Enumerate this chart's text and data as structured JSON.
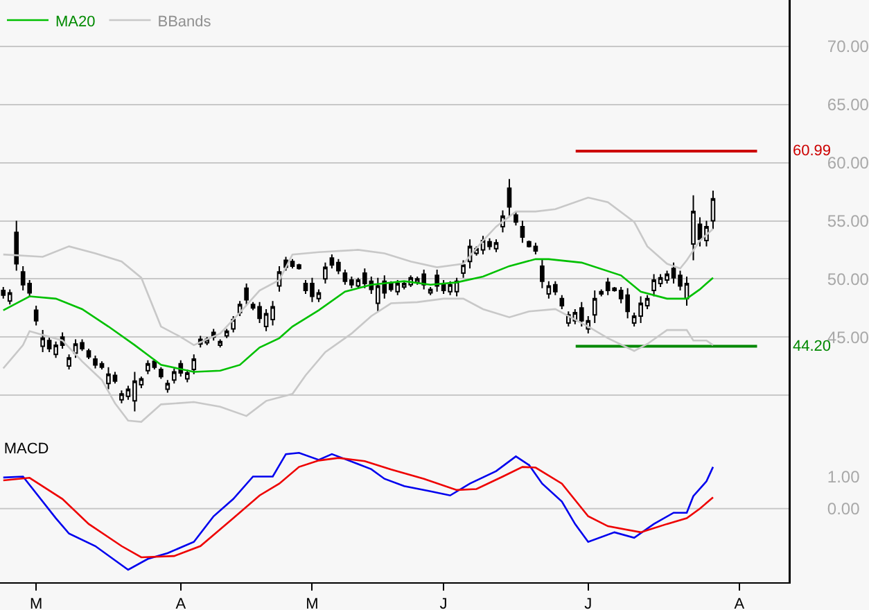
{
  "chart_data": [
    {
      "type": "candlestick",
      "color": "#000000",
      "legend": "top left",
      "grid": "y",
      "tick_labels": "y",
      "categories": [
        null,
        null,
        null,
        null,
        null,
        null,
        null,
        null,
        null,
        null,
        null,
        null,
        null,
        null,
        null,
        null,
        null,
        null,
        null,
        null,
        null,
        null,
        null,
        null,
        null,
        null,
        null,
        null,
        null,
        null,
        null,
        null,
        null,
        null,
        null,
        null,
        null,
        null,
        null,
        null,
        null,
        null,
        null,
        null,
        null,
        null,
        null,
        null,
        null,
        null,
        null,
        null,
        null,
        null,
        null,
        null,
        null,
        null,
        null,
        null,
        null,
        null,
        null,
        null,
        null,
        null,
        null,
        null,
        null,
        null,
        null,
        null,
        null,
        null,
        null,
        null,
        null,
        null,
        null,
        null,
        null,
        null,
        null,
        null,
        null,
        null,
        null,
        null,
        null,
        null,
        null,
        null,
        null,
        null,
        null,
        null,
        null,
        null,
        null,
        null,
        null,
        null,
        null,
        null,
        null,
        null,
        null,
        null,
        null,
        null,
        null,
        null,
        null,
        null,
        null,
        null,
        null,
        null,
        null,
        null
      ],
      "ohlc": [
        [
          49.0,
          49.3,
          48.3,
          48.6
        ],
        [
          48.1,
          49.1,
          47.8,
          48.8
        ],
        [
          54.0,
          55.0,
          50.7,
          51.3
        ],
        [
          50.6,
          51.1,
          49.0,
          49.5
        ],
        [
          49.6,
          49.9,
          48.5,
          48.8
        ],
        [
          47.3,
          47.7,
          46.0,
          46.4
        ],
        [
          44.2,
          45.6,
          43.7,
          44.9
        ],
        [
          44.7,
          45.0,
          43.7,
          44.0
        ],
        [
          43.5,
          44.6,
          43.2,
          44.3
        ],
        [
          45.0,
          45.4,
          44.0,
          44.3
        ],
        [
          42.5,
          43.5,
          42.2,
          43.2
        ],
        [
          43.6,
          44.8,
          43.2,
          44.4
        ],
        [
          44.5,
          44.8,
          43.8,
          44.0
        ],
        [
          43.8,
          44.0,
          43.1,
          43.3
        ],
        [
          43.1,
          43.4,
          42.3,
          42.6
        ],
        [
          42.7,
          42.9,
          42.2,
          42.4
        ],
        [
          41.0,
          42.4,
          40.5,
          41.8
        ],
        [
          41.7,
          42.0,
          41.0,
          41.2
        ],
        [
          39.6,
          40.4,
          39.3,
          40.1
        ],
        [
          39.9,
          40.8,
          39.6,
          40.5
        ],
        [
          39.5,
          42.0,
          38.6,
          41.2
        ],
        [
          40.9,
          41.6,
          40.6,
          41.4
        ],
        [
          42.1,
          43.0,
          41.8,
          42.7
        ],
        [
          42.9,
          43.1,
          42.2,
          42.4
        ],
        [
          42.2,
          42.4,
          41.4,
          41.6
        ],
        [
          40.5,
          41.3,
          40.2,
          41.0
        ],
        [
          41.3,
          42.3,
          41.0,
          42.0
        ],
        [
          42.7,
          43.0,
          41.6,
          41.9
        ],
        [
          41.4,
          42.2,
          41.1,
          41.9
        ],
        [
          42.2,
          43.5,
          41.8,
          43.1
        ],
        [
          44.4,
          45.1,
          44.1,
          44.8
        ],
        [
          44.5,
          45.0,
          44.3,
          44.8
        ],
        [
          45.4,
          45.7,
          44.7,
          45.0
        ],
        [
          44.3,
          44.8,
          44.1,
          44.6
        ],
        [
          45.1,
          45.7,
          44.9,
          45.5
        ],
        [
          45.7,
          46.8,
          45.4,
          46.5
        ],
        [
          47.1,
          48.1,
          46.8,
          47.8
        ],
        [
          49.2,
          49.6,
          47.8,
          48.2
        ],
        [
          47.8,
          48.0,
          47.3,
          47.5
        ],
        [
          47.6,
          48.0,
          46.2,
          46.6
        ],
        [
          45.9,
          47.4,
          45.5,
          47.0
        ],
        [
          46.5,
          48.1,
          46.0,
          47.6
        ],
        [
          49.4,
          51.1,
          48.9,
          50.6
        ],
        [
          51.6,
          51.9,
          50.7,
          51.0
        ],
        [
          51.5,
          51.7,
          50.9,
          51.1
        ],
        [
          51.2,
          51.3,
          50.8,
          50.9
        ],
        [
          49.6,
          49.9,
          48.7,
          49.0
        ],
        [
          49.6,
          50.1,
          48.0,
          48.5
        ],
        [
          48.3,
          49.1,
          48.0,
          48.8
        ],
        [
          50.0,
          51.4,
          49.6,
          51.0
        ],
        [
          51.8,
          52.1,
          50.9,
          51.2
        ],
        [
          51.4,
          51.7,
          50.4,
          50.7
        ],
        [
          50.5,
          50.8,
          49.5,
          49.8
        ],
        [
          49.9,
          50.2,
          49.2,
          49.5
        ],
        [
          49.4,
          50.1,
          49.2,
          49.9
        ],
        [
          50.5,
          50.9,
          49.2,
          49.6
        ],
        [
          49.8,
          50.2,
          48.7,
          49.1
        ],
        [
          47.9,
          50.1,
          47.2,
          49.4
        ],
        [
          49.8,
          50.3,
          48.3,
          48.8
        ],
        [
          49.6,
          49.8,
          48.9,
          49.1
        ],
        [
          48.9,
          49.9,
          48.6,
          49.6
        ],
        [
          49.3,
          49.8,
          49.1,
          49.6
        ],
        [
          49.5,
          50.3,
          49.3,
          50.1
        ],
        [
          49.7,
          50.2,
          49.5,
          50.0
        ],
        [
          50.4,
          50.8,
          49.1,
          49.5
        ],
        [
          48.8,
          49.3,
          48.6,
          49.1
        ],
        [
          50.3,
          50.8,
          48.9,
          49.4
        ],
        [
          49.6,
          49.9,
          48.7,
          49.0
        ],
        [
          48.9,
          49.8,
          48.6,
          49.5
        ],
        [
          48.9,
          50.1,
          48.5,
          49.8
        ],
        [
          50.5,
          51.6,
          50.1,
          51.2
        ],
        [
          51.5,
          53.4,
          50.9,
          52.8
        ],
        [
          52.2,
          52.8,
          52.0,
          52.6
        ],
        [
          52.5,
          53.7,
          52.1,
          53.3
        ],
        [
          53.2,
          53.5,
          52.5,
          52.8
        ],
        [
          52.6,
          53.4,
          52.3,
          53.1
        ],
        [
          54.5,
          55.9,
          54.0,
          55.4
        ],
        [
          57.8,
          58.6,
          55.4,
          56.2
        ],
        [
          55.5,
          55.8,
          54.6,
          54.9
        ],
        [
          54.5,
          55.0,
          53.1,
          53.6
        ],
        [
          53.2,
          53.3,
          52.7,
          52.8
        ],
        [
          52.8,
          53.1,
          52.1,
          52.4
        ],
        [
          51.1,
          51.7,
          49.2,
          49.8
        ],
        [
          48.7,
          49.8,
          48.3,
          49.4
        ],
        [
          49.5,
          49.8,
          48.6,
          48.9
        ],
        [
          48.3,
          48.6,
          47.4,
          47.7
        ],
        [
          46.2,
          47.2,
          45.9,
          46.9
        ],
        [
          46.4,
          47.4,
          46.1,
          47.1
        ],
        [
          47.5,
          48.0,
          45.9,
          46.4
        ],
        [
          45.7,
          46.8,
          45.3,
          46.4
        ],
        [
          46.9,
          49.0,
          46.2,
          48.3
        ],
        [
          48.7,
          49.1,
          48.5,
          48.9
        ],
        [
          49.7,
          50.1,
          48.6,
          49.0
        ],
        [
          49.2,
          49.3,
          48.9,
          49.0
        ],
        [
          49.0,
          49.3,
          47.9,
          48.3
        ],
        [
          48.6,
          49.2,
          46.6,
          47.2
        ],
        [
          46.2,
          47.1,
          45.9,
          46.8
        ],
        [
          46.8,
          48.5,
          46.2,
          47.9
        ],
        [
          47.7,
          48.6,
          47.4,
          48.3
        ],
        [
          49.0,
          50.4,
          48.5,
          49.9
        ],
        [
          49.6,
          50.4,
          49.3,
          50.1
        ],
        [
          49.9,
          50.7,
          49.6,
          50.4
        ],
        [
          50.9,
          51.4,
          49.6,
          50.1
        ],
        [
          50.3,
          50.7,
          49.0,
          49.4
        ],
        [
          48.3,
          50.2,
          47.7,
          49.6
        ],
        [
          53.0,
          57.2,
          51.6,
          55.8
        ],
        [
          54.7,
          55.3,
          52.8,
          53.4
        ],
        [
          53.3,
          55.0,
          52.8,
          54.5
        ],
        [
          55.0,
          57.6,
          54.3,
          56.9
        ],
        null,
        null,
        null,
        null,
        null,
        null,
        null,
        null,
        null,
        null,
        null
      ],
      "series": [
        {
          "name": "MA20",
          "type": "line",
          "color": "#00c000",
          "values": [
            47.3,
            null,
            null,
            null,
            48.5,
            null,
            null,
            null,
            48.3,
            null,
            null,
            null,
            47.4,
            null,
            null,
            null,
            45.9,
            null,
            null,
            null,
            44.3,
            null,
            null,
            null,
            42.6,
            null,
            null,
            null,
            null,
            42.0,
            null,
            null,
            null,
            42.1,
            null,
            null,
            42.6,
            null,
            null,
            44.1,
            null,
            null,
            44.9,
            null,
            45.9,
            null,
            null,
            null,
            47.3,
            null,
            null,
            null,
            48.9,
            null,
            null,
            null,
            49.5,
            null,
            null,
            null,
            null,
            49.8,
            null,
            null,
            null,
            49.5,
            null,
            null,
            null,
            49.7,
            null,
            null,
            null,
            50.2,
            null,
            null,
            null,
            51.1,
            null,
            null,
            null,
            51.7,
            null,
            51.7,
            null,
            null,
            null,
            null,
            51.4,
            null,
            null,
            null,
            null,
            null,
            50.3,
            null,
            null,
            48.9,
            null,
            null,
            null,
            48.3,
            null,
            null,
            48.3,
            null,
            49.1,
            null,
            50.1,
            null,
            null,
            null,
            null,
            null,
            null,
            null,
            null,
            null,
            null,
            null
          ]
        },
        {
          "name": "BBands",
          "type": "line",
          "color": "#c8c8c8",
          "values": [
            52.1,
            null,
            null,
            null,
            null,
            null,
            51.9,
            null,
            null,
            null,
            52.8,
            null,
            null,
            null,
            52.2,
            null,
            null,
            null,
            51.5,
            null,
            null,
            50.1,
            null,
            null,
            45.9,
            null,
            null,
            45.0,
            null,
            44.3,
            null,
            null,
            null,
            45.3,
            null,
            null,
            47.1,
            null,
            null,
            49.0,
            null,
            null,
            49.9,
            null,
            52.1,
            null,
            null,
            null,
            52.3,
            null,
            null,
            null,
            null,
            null,
            52.5,
            null,
            null,
            null,
            52.2,
            null,
            null,
            null,
            51.5,
            null,
            null,
            null,
            51.0,
            null,
            null,
            null,
            51.3,
            null,
            null,
            53.3,
            null,
            54.5,
            null,
            null,
            55.8,
            null,
            null,
            55.8,
            null,
            null,
            56.0,
            null,
            null,
            null,
            null,
            57.0,
            null,
            null,
            56.6,
            null,
            null,
            null,
            54.9,
            null,
            52.8,
            null,
            null,
            51.3,
            null,
            50.9,
            51.6,
            null,
            53.3,
            null,
            54.3,
            null,
            null,
            null,
            null,
            null,
            null,
            null,
            null,
            null,
            null,
            null
          ]
        },
        {
          "type": "line",
          "color": "#c8c8c8",
          "values": [
            42.3,
            null,
            null,
            44.3,
            45.5,
            null,
            null,
            null,
            null,
            44.7,
            null,
            null,
            42.9,
            null,
            null,
            41.3,
            null,
            39.3,
            null,
            37.8,
            null,
            37.7,
            null,
            null,
            39.2,
            null,
            null,
            null,
            null,
            39.4,
            null,
            null,
            null,
            39.0,
            null,
            null,
            null,
            38.2,
            null,
            null,
            39.5,
            null,
            null,
            null,
            40.1,
            null,
            41.7,
            null,
            null,
            43.7,
            null,
            null,
            null,
            45.3,
            null,
            null,
            46.8,
            null,
            null,
            47.9,
            null,
            null,
            null,
            48.0,
            null,
            null,
            null,
            48.3,
            null,
            null,
            48.3,
            null,
            null,
            47.4,
            null,
            null,
            null,
            46.7,
            null,
            null,
            47.2,
            null,
            null,
            null,
            47.4,
            null,
            null,
            null,
            null,
            45.9,
            null,
            null,
            44.9,
            null,
            null,
            null,
            43.8,
            null,
            44.4,
            null,
            null,
            45.6,
            null,
            null,
            45.6,
            44.7,
            null,
            44.7,
            44.3,
            null,
            null,
            null,
            null,
            null,
            null,
            null,
            null,
            null,
            null,
            null
          ]
        }
      ],
      "ylim": [
        36.3,
        74
      ],
      "yticks": [
        {
          "value": 40,
          "label": null
        },
        {
          "value": 45,
          "label": "45.00"
        },
        {
          "value": 50,
          "label": "50.00"
        },
        {
          "value": 55,
          "label": "55.00"
        },
        {
          "value": 60,
          "label": "60.00"
        },
        {
          "value": 65,
          "label": "65.00"
        },
        {
          "value": 70,
          "label": "70.00"
        }
      ],
      "ref_lines": [
        {
          "axis": "y",
          "value": 60.99,
          "label": "60.99",
          "color": "#cc0000"
        },
        {
          "axis": "y",
          "value": 44.2,
          "label": "44.20",
          "color": "#008800"
        }
      ]
    },
    {
      "type": "line",
      "title": "MACD",
      "categories": [
        null,
        null,
        null,
        null,
        null,
        "M",
        null,
        null,
        null,
        null,
        null,
        null,
        null,
        null,
        null,
        null,
        null,
        null,
        null,
        null,
        null,
        null,
        null,
        null,
        null,
        null,
        null,
        "A",
        null,
        null,
        null,
        null,
        null,
        null,
        null,
        null,
        null,
        null,
        null,
        null,
        null,
        null,
        null,
        null,
        null,
        null,
        null,
        "M",
        null,
        null,
        null,
        null,
        null,
        null,
        null,
        null,
        null,
        null,
        null,
        null,
        null,
        null,
        null,
        null,
        null,
        null,
        null,
        "J",
        null,
        null,
        null,
        null,
        null,
        null,
        null,
        null,
        null,
        null,
        null,
        null,
        null,
        null,
        null,
        null,
        null,
        null,
        null,
        null,
        null,
        "J",
        null,
        null,
        null,
        null,
        null,
        null,
        null,
        null,
        null,
        null,
        null,
        null,
        null,
        null,
        null,
        null,
        null,
        null,
        null,
        null,
        null,
        null,
        "A",
        null,
        null,
        null,
        null,
        null,
        null,
        null
      ],
      "series": [
        {
          "type": "line",
          "color": "#0000ee",
          "values": [
            0.97,
            null,
            null,
            1.0,
            null,
            null,
            null,
            null,
            -0.3,
            null,
            -0.78,
            null,
            null,
            null,
            -1.17,
            null,
            null,
            null,
            null,
            -1.91,
            null,
            null,
            -1.57,
            null,
            null,
            -1.39,
            null,
            null,
            null,
            -1.04,
            null,
            null,
            -0.24,
            null,
            null,
            0.3,
            null,
            null,
            1.0,
            null,
            null,
            1.0,
            null,
            1.7,
            null,
            1.74,
            null,
            null,
            1.52,
            null,
            1.7,
            null,
            null,
            null,
            1.39,
            null,
            1.23,
            null,
            0.93,
            null,
            null,
            0.7,
            null,
            null,
            null,
            0.54,
            null,
            null,
            0.41,
            null,
            null,
            0.78,
            null,
            null,
            null,
            1.17,
            null,
            null,
            1.63,
            null,
            1.36,
            null,
            0.78,
            null,
            null,
            0.22,
            null,
            -0.48,
            null,
            -1.04,
            null,
            null,
            null,
            -0.74,
            null,
            null,
            -0.91,
            null,
            null,
            -0.48,
            null,
            null,
            -0.13,
            null,
            -0.13,
            0.39,
            null,
            0.85,
            1.3,
            null,
            null,
            null,
            null,
            null,
            null,
            null,
            null,
            null,
            null,
            null
          ]
        },
        {
          "type": "line",
          "color": "#ee0000",
          "values": [
            0.88,
            null,
            null,
            null,
            0.96,
            null,
            null,
            null,
            null,
            0.3,
            null,
            null,
            null,
            -0.48,
            null,
            null,
            null,
            null,
            -1.17,
            null,
            null,
            -1.52,
            null,
            null,
            null,
            null,
            -1.48,
            null,
            null,
            null,
            -1.17,
            null,
            null,
            null,
            null,
            -0.3,
            null,
            null,
            null,
            0.41,
            null,
            null,
            0.78,
            null,
            null,
            1.3,
            null,
            null,
            1.5,
            null,
            null,
            1.58,
            null,
            null,
            null,
            1.48,
            null,
            null,
            null,
            1.22,
            null,
            null,
            null,
            null,
            0.93,
            null,
            null,
            null,
            null,
            0.58,
            null,
            null,
            0.61,
            null,
            null,
            null,
            1.0,
            null,
            null,
            1.3,
            null,
            1.28,
            null,
            null,
            null,
            0.78,
            null,
            null,
            null,
            -0.24,
            null,
            null,
            -0.55,
            null,
            null,
            null,
            null,
            -0.74,
            null,
            null,
            null,
            -0.48,
            null,
            null,
            -0.3,
            null,
            0.0,
            null,
            0.35,
            null,
            null,
            null,
            null,
            null,
            null,
            null,
            null,
            null,
            null,
            null
          ]
        }
      ],
      "ylim": [
        -2.3,
        2.2
      ],
      "yticks": [
        {
          "value": 1,
          "label": "1.00"
        },
        {
          "value": 0,
          "label": "0.00"
        }
      ],
      "ref_lines": [
        {
          "axis": "y",
          "value": 0,
          "color": "#c8c8c8"
        }
      ]
    }
  ]
}
